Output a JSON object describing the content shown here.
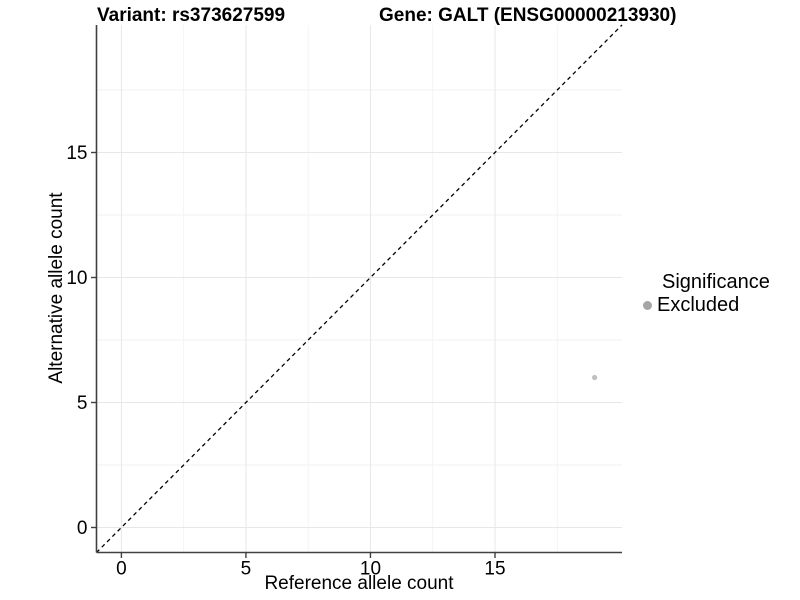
{
  "titles": {
    "variant": "Variant: rs373627599",
    "gene": "Gene: GALT (ENSG00000213930)"
  },
  "axes": {
    "x": {
      "label": "Reference allele count",
      "ticks": [
        "0",
        "5",
        "10",
        "15"
      ]
    },
    "y": {
      "label": "Alternative allele count",
      "ticks": [
        "0",
        "5",
        "10",
        "15"
      ]
    }
  },
  "legend": {
    "title": "Significance",
    "items": [
      {
        "label": "Excluded",
        "marker_color": "#a6a6a6"
      }
    ]
  },
  "colors": {
    "background": "#ffffff",
    "axis_line": "#404040",
    "tick_mark": "#404040",
    "grid_major": "#e7e7e7",
    "grid_minor": "#f2f2f2",
    "identity_line": "#000000",
    "point": "#c0c0c0",
    "text": "#000000"
  },
  "chart_data": {
    "type": "scatter",
    "title": "Variant: rs373627599 | Gene: GALT (ENSG00000213930)",
    "xlabel": "Reference allele count",
    "ylabel": "Alternative allele count",
    "xlim": [
      -1,
      20.1
    ],
    "ylim": [
      -1,
      20.1
    ],
    "x_ticks": [
      0,
      5,
      10,
      15
    ],
    "y_ticks": [
      0,
      5,
      10,
      15
    ],
    "x_minor": [
      2.5,
      7.5,
      12.5,
      17.5
    ],
    "y_minor": [
      2.5,
      7.5,
      12.5,
      17.5
    ],
    "grid": "major+minor",
    "legend_position": "right",
    "series": [
      {
        "name": "Excluded",
        "significance": "Excluded",
        "color": "#c0c0c0",
        "points": [
          [
            19,
            6
          ]
        ]
      }
    ],
    "reference_line": {
      "kind": "identity",
      "slope": 1,
      "intercept": 0,
      "style": "dashed",
      "color": "#000000"
    }
  }
}
